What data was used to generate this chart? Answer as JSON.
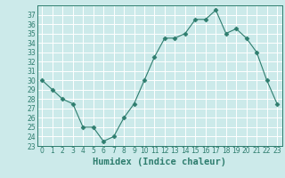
{
  "x": [
    0,
    1,
    2,
    3,
    4,
    5,
    6,
    7,
    8,
    9,
    10,
    11,
    12,
    13,
    14,
    15,
    16,
    17,
    18,
    19,
    20,
    21,
    22,
    23
  ],
  "y": [
    30,
    29,
    28,
    27.5,
    25,
    25,
    23.5,
    24,
    26,
    27.5,
    30,
    32.5,
    34.5,
    34.5,
    35,
    36.5,
    36.5,
    37.5,
    35,
    35.5,
    34.5,
    33,
    30,
    27.5
  ],
  "xlabel": "Humidex (Indice chaleur)",
  "ylim": [
    23,
    38
  ],
  "yticks": [
    23,
    24,
    25,
    26,
    27,
    28,
    29,
    30,
    31,
    32,
    33,
    34,
    35,
    36,
    37
  ],
  "xticks": [
    0,
    1,
    2,
    3,
    4,
    5,
    6,
    7,
    8,
    9,
    10,
    11,
    12,
    13,
    14,
    15,
    16,
    17,
    18,
    19,
    20,
    21,
    22,
    23
  ],
  "line_color": "#2e7d6e",
  "marker": "D",
  "marker_size": 2.5,
  "bg_color": "#cceaea",
  "grid_color": "#ffffff",
  "axes_color": "#2e7d6e",
  "tick_fontsize": 5.5,
  "xlabel_fontsize": 7.5
}
